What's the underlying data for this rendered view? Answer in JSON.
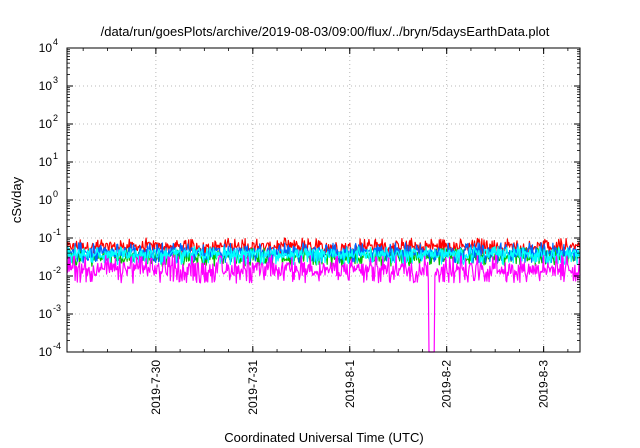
{
  "chart_data": {
    "type": "line",
    "title": "/data/run/goesPlots/archive/2019-08-03/09:00/flux/../bryn/5daysEarthData.plot",
    "xlabel": "Coordinated Universal Time (UTC)",
    "ylabel": "cSv/day",
    "yscale": "log",
    "ylim": [
      0.0001,
      10000
    ],
    "yticks": [
      {
        "value": 10000,
        "base": "10",
        "exp": "4"
      },
      {
        "value": 1000,
        "base": "10",
        "exp": "3"
      },
      {
        "value": 100,
        "base": "10",
        "exp": "2"
      },
      {
        "value": 10,
        "base": "10",
        "exp": "1"
      },
      {
        "value": 1,
        "base": "10",
        "exp": "0"
      },
      {
        "value": 0.1,
        "base": "10",
        "exp": "-1"
      },
      {
        "value": 0.01,
        "base": "10",
        "exp": "-2"
      },
      {
        "value": 0.001,
        "base": "10",
        "exp": "-3"
      },
      {
        "value": 0.0001,
        "base": "10",
        "exp": "-4"
      }
    ],
    "xlim": [
      "2019-07-29T02:00",
      "2019-08-03T09:00"
    ],
    "xticks": [
      "2019-7-30",
      "2019-7-31",
      "2019-8-1",
      "2019-8-2",
      "2019-8-3"
    ],
    "grid": true,
    "series": [
      {
        "color": "#ff0000",
        "typical": 0.06,
        "low": 0.035,
        "high": 0.1,
        "dropouts": []
      },
      {
        "color": "#00c000",
        "typical": 0.032,
        "low": 0.018,
        "high": 0.055,
        "dropouts": []
      },
      {
        "color": "#0066ff",
        "typical": 0.042,
        "low": 0.022,
        "high": 0.075,
        "dropouts": []
      },
      {
        "color": "#00ffff",
        "typical": 0.038,
        "low": 0.02,
        "high": 0.06,
        "dropouts": []
      },
      {
        "color": "#ff00ff",
        "typical": 0.015,
        "low": 0.0065,
        "high": 0.035,
        "dropouts": [
          {
            "start": "2019-08-01T19:30",
            "end": "2019-08-01T21:00",
            "value": 0.0001
          }
        ]
      }
    ]
  }
}
